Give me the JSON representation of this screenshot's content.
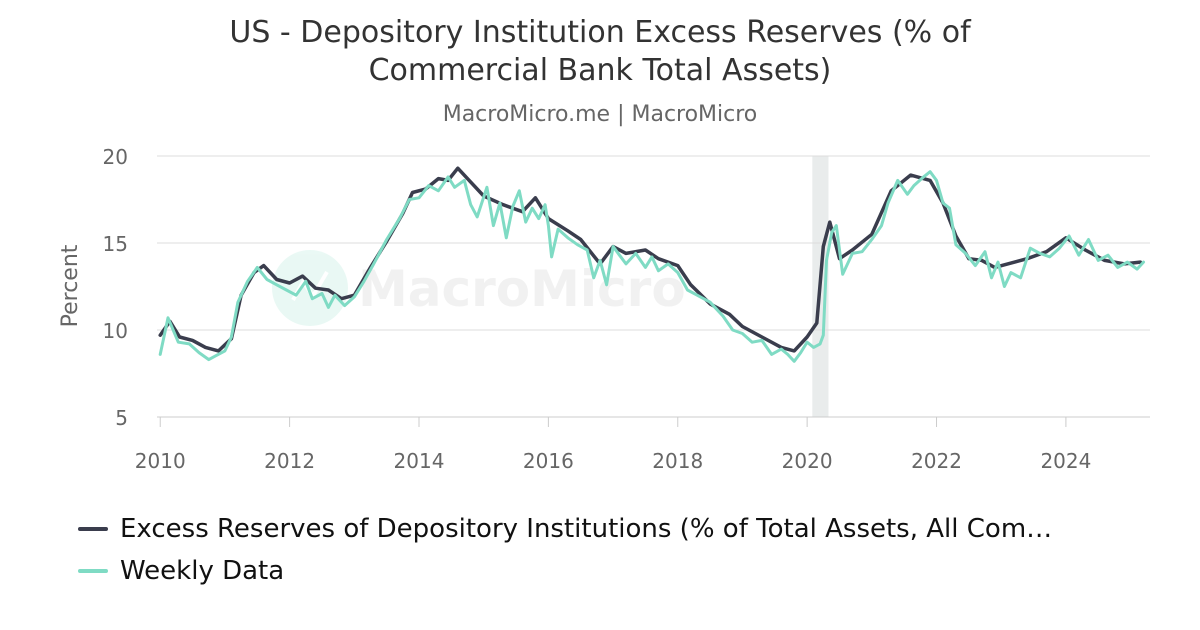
{
  "title": "US - Depository Institution Excess Reserves (% of Commercial Bank Total Assets)",
  "subtitle": "MacroMicro.me | MacroMicro",
  "watermark": "MacroMicro",
  "colors": {
    "monthly": "#3a3d4d",
    "weekly": "#7fdbc4",
    "recession": "#e9ecec",
    "grid": "#dddddd",
    "axis": "#cccccc",
    "tick_text": "#666666"
  },
  "chart_data": {
    "type": "line",
    "title": "US - Depository Institution Excess Reserves (% of Commercial Bank Total Assets)",
    "subtitle": "MacroMicro.me | MacroMicro",
    "xlabel": "",
    "ylabel": "Percent",
    "xlim": [
      2009.95,
      2025.3
    ],
    "ylim": [
      5,
      20
    ],
    "x_ticks": [
      2010,
      2012,
      2014,
      2016,
      2018,
      2020,
      2022,
      2024
    ],
    "y_ticks": [
      5,
      10,
      15,
      20
    ],
    "grid": true,
    "legend_position": "bottom-left",
    "recession_shading": [
      [
        2020.08,
        2020.33
      ]
    ],
    "series": [
      {
        "name": "Excess Reserves of Depository Institutions (% of Total Assets, All Com…",
        "color": "#3a3d4d",
        "x": [
          2010.0,
          2010.15,
          2010.3,
          2010.5,
          2010.7,
          2010.9,
          2011.1,
          2011.25,
          2011.45,
          2011.6,
          2011.8,
          2012.0,
          2012.2,
          2012.4,
          2012.6,
          2012.8,
          2013.0,
          2013.25,
          2013.5,
          2013.75,
          2013.9,
          2014.1,
          2014.3,
          2014.45,
          2014.6,
          2014.8,
          2015.0,
          2015.3,
          2015.6,
          2015.8,
          2016.0,
          2016.3,
          2016.5,
          2016.8,
          2017.0,
          2017.2,
          2017.5,
          2017.7,
          2018.0,
          2018.2,
          2018.5,
          2018.8,
          2019.0,
          2019.3,
          2019.6,
          2019.8,
          2020.0,
          2020.15,
          2020.25,
          2020.35,
          2020.5,
          2020.7,
          2021.0,
          2021.3,
          2021.6,
          2021.9,
          2022.1,
          2022.3,
          2022.5,
          2022.7,
          2022.9,
          2023.1,
          2023.4,
          2023.7,
          2024.0,
          2024.3,
          2024.6,
          2024.9,
          2025.15
        ],
        "values": [
          9.7,
          10.5,
          9.6,
          9.4,
          9.0,
          8.8,
          9.5,
          12.0,
          13.3,
          13.7,
          12.9,
          12.7,
          13.1,
          12.4,
          12.3,
          11.8,
          12.0,
          13.6,
          15.1,
          16.7,
          17.9,
          18.1,
          18.7,
          18.6,
          19.3,
          18.5,
          17.7,
          17.2,
          16.8,
          17.6,
          16.4,
          15.7,
          15.2,
          13.8,
          14.8,
          14.4,
          14.6,
          14.1,
          13.7,
          12.6,
          11.5,
          10.9,
          10.2,
          9.6,
          9.0,
          8.8,
          9.6,
          10.4,
          14.8,
          16.2,
          14.1,
          14.6,
          15.5,
          18.0,
          18.9,
          18.6,
          17.3,
          15.4,
          14.1,
          14.0,
          13.6,
          13.8,
          14.1,
          14.5,
          15.3,
          14.6,
          14.0,
          13.8,
          13.9
        ]
      },
      {
        "name": "Weekly Data",
        "color": "#7fdbc4",
        "x": [
          2010.0,
          2010.12,
          2010.28,
          2010.45,
          2010.6,
          2010.75,
          2010.85,
          2011.0,
          2011.1,
          2011.2,
          2011.35,
          2011.5,
          2011.65,
          2011.8,
          2011.95,
          2012.1,
          2012.25,
          2012.35,
          2012.5,
          2012.6,
          2012.7,
          2012.85,
          2013.0,
          2013.15,
          2013.3,
          2013.5,
          2013.7,
          2013.85,
          2014.0,
          2014.15,
          2014.3,
          2014.45,
          2014.55,
          2014.7,
          2014.8,
          2014.9,
          2015.05,
          2015.15,
          2015.25,
          2015.35,
          2015.45,
          2015.55,
          2015.65,
          2015.75,
          2015.85,
          2015.95,
          2016.0,
          2016.05,
          2016.15,
          2016.3,
          2016.45,
          2016.6,
          2016.7,
          2016.8,
          2016.9,
          2017.0,
          2017.1,
          2017.2,
          2017.35,
          2017.5,
          2017.6,
          2017.7,
          2017.85,
          2018.0,
          2018.15,
          2018.3,
          2018.5,
          2018.7,
          2018.85,
          2019.0,
          2019.15,
          2019.3,
          2019.45,
          2019.6,
          2019.7,
          2019.8,
          2019.9,
          2020.0,
          2020.1,
          2020.2,
          2020.25,
          2020.3,
          2020.38,
          2020.45,
          2020.55,
          2020.7,
          2020.85,
          2021.0,
          2021.15,
          2021.25,
          2021.4,
          2021.55,
          2021.65,
          2021.8,
          2021.9,
          2022.0,
          2022.1,
          2022.2,
          2022.3,
          2022.45,
          2022.6,
          2022.75,
          2022.85,
          2022.95,
          2023.05,
          2023.15,
          2023.3,
          2023.45,
          2023.6,
          2023.75,
          2023.9,
          2024.05,
          2024.2,
          2024.35,
          2024.5,
          2024.65,
          2024.8,
          2024.95,
          2025.1,
          2025.2
        ],
        "values": [
          8.6,
          10.7,
          9.3,
          9.2,
          8.7,
          8.3,
          8.5,
          8.8,
          9.6,
          11.6,
          12.8,
          13.6,
          12.9,
          12.6,
          12.3,
          12.0,
          12.8,
          11.8,
          12.1,
          11.3,
          12.0,
          11.4,
          11.9,
          12.8,
          13.8,
          15.2,
          16.4,
          17.5,
          17.6,
          18.3,
          18.0,
          18.8,
          18.2,
          18.6,
          17.2,
          16.5,
          18.2,
          16.0,
          17.3,
          15.3,
          17.1,
          18.0,
          16.2,
          17.0,
          16.4,
          17.2,
          16.0,
          14.2,
          15.8,
          15.3,
          14.9,
          14.6,
          13.0,
          14.0,
          12.6,
          14.8,
          14.3,
          13.8,
          14.4,
          13.6,
          14.2,
          13.4,
          13.8,
          13.3,
          12.3,
          12.0,
          11.6,
          10.8,
          10.0,
          9.8,
          9.3,
          9.4,
          8.6,
          8.9,
          8.6,
          8.2,
          8.7,
          9.3,
          9.0,
          9.2,
          9.7,
          14.0,
          15.6,
          16.0,
          13.2,
          14.4,
          14.5,
          15.2,
          16.0,
          17.3,
          18.6,
          17.8,
          18.3,
          18.8,
          19.1,
          18.6,
          17.3,
          17.0,
          14.9,
          14.4,
          13.7,
          14.5,
          13.0,
          13.9,
          12.5,
          13.3,
          13.0,
          14.7,
          14.4,
          14.2,
          14.7,
          15.4,
          14.3,
          15.2,
          14.0,
          14.3,
          13.6,
          13.9,
          13.5,
          13.9
        ]
      }
    ]
  }
}
